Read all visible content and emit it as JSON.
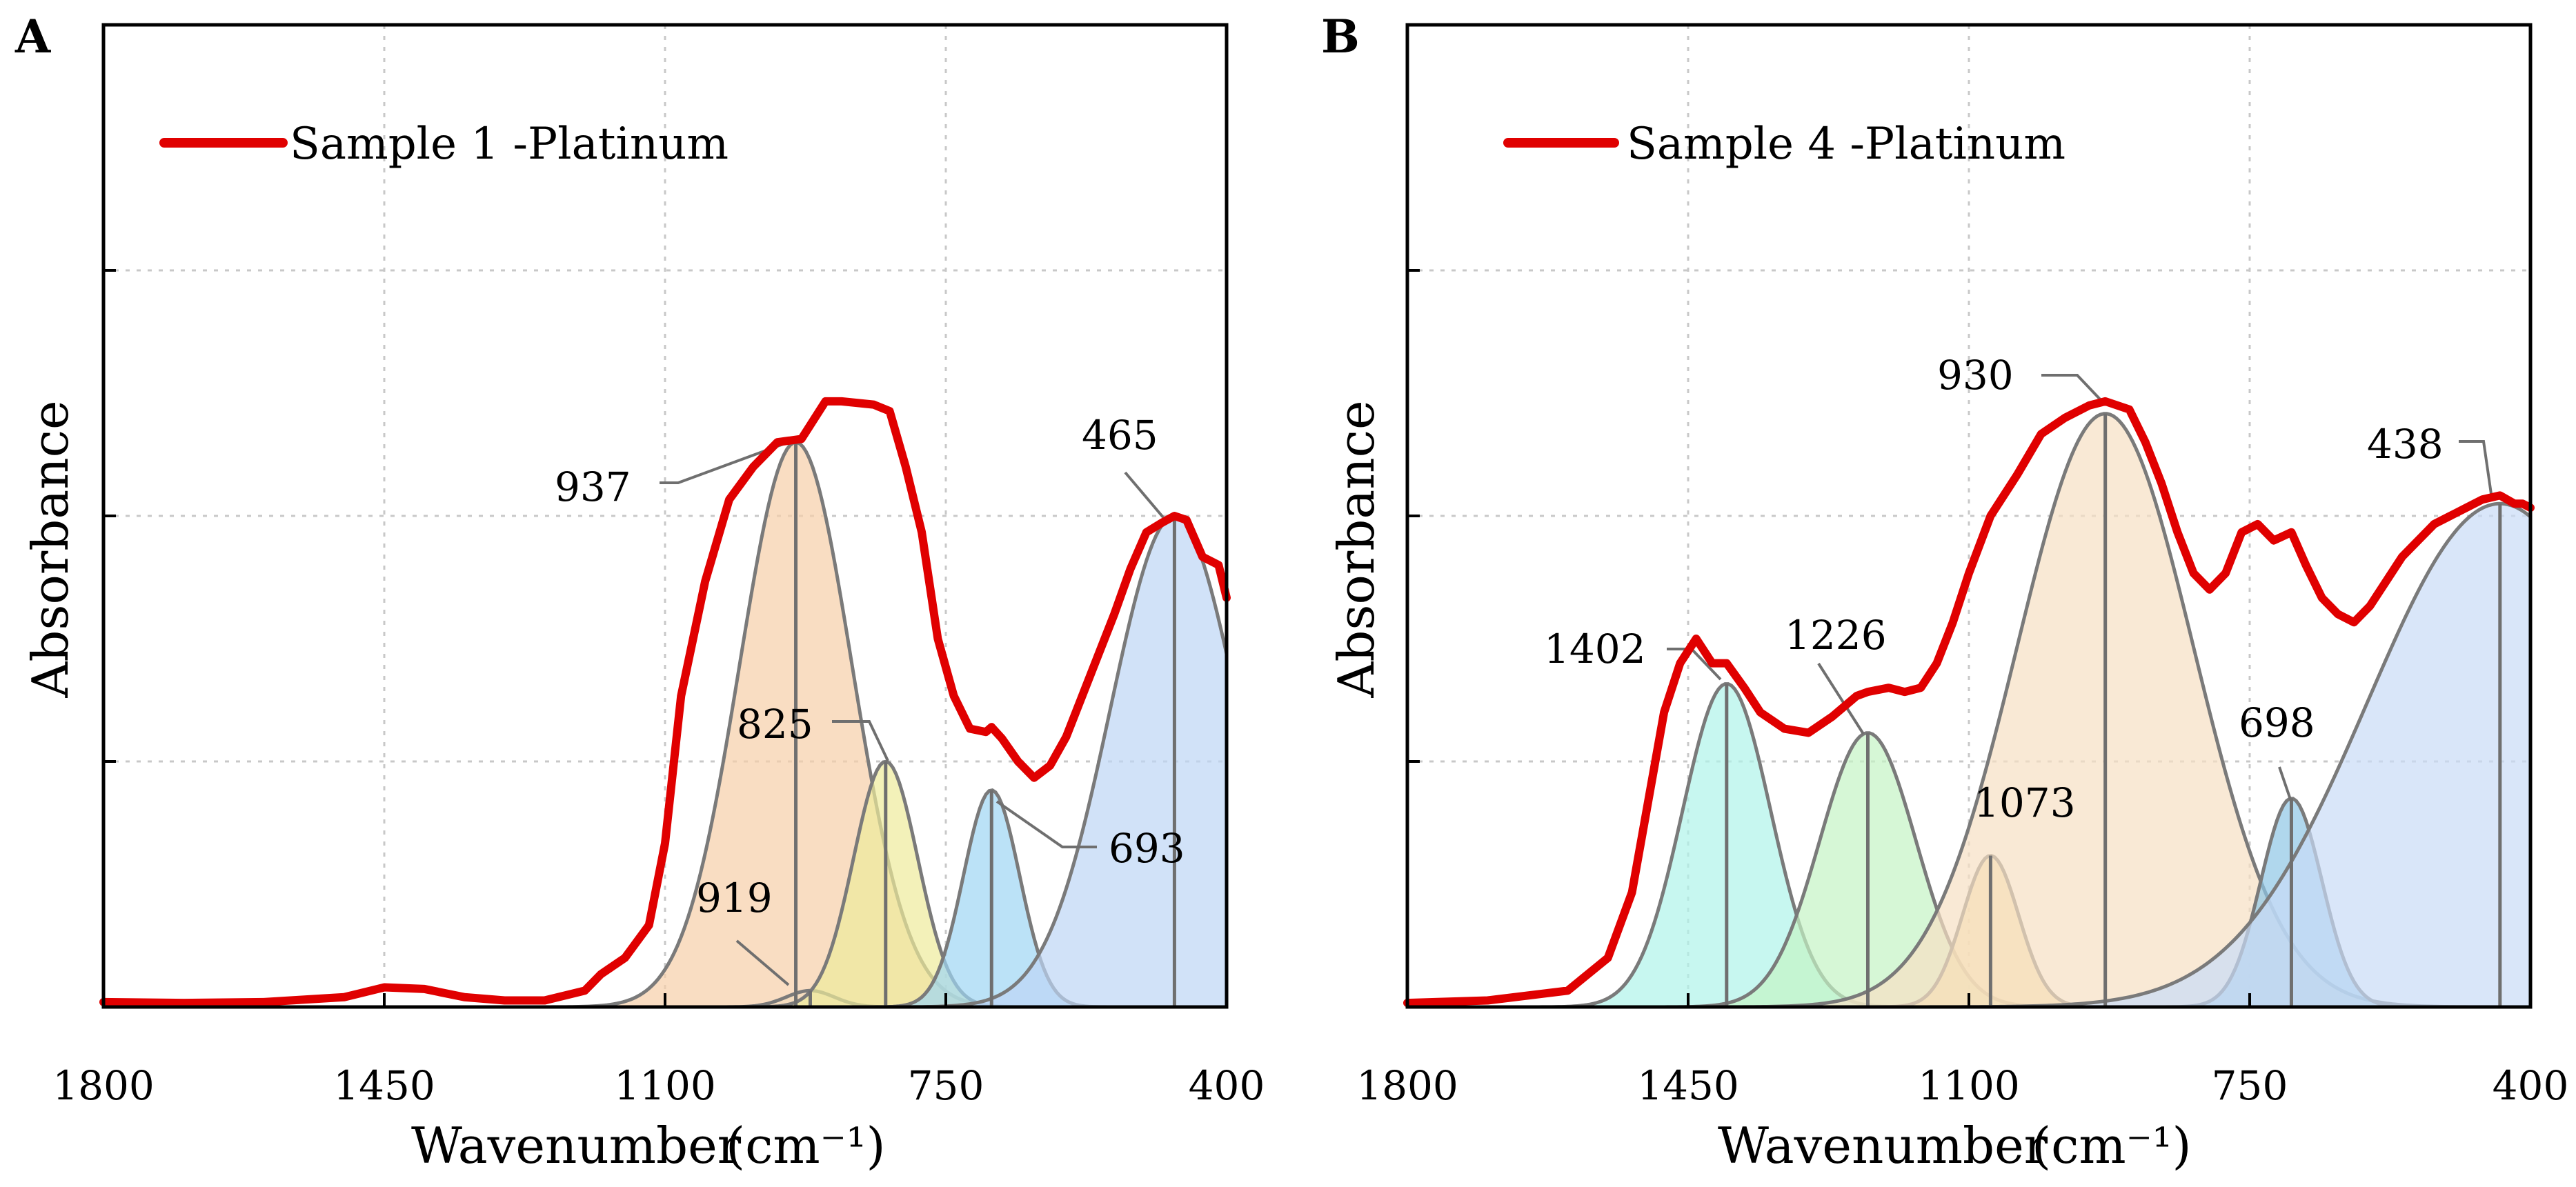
{
  "chart_data": [
    {
      "panel": "A",
      "type": "line",
      "title": "",
      "xlabel": "Wavenumber",
      "xlabel_unit": "(cm⁻¹)",
      "ylabel": "Absorbance",
      "xlim": [
        1800,
        400
      ],
      "ylim": [
        0,
        1.2
      ],
      "x_ticks": [
        "1800",
        "1450",
        "1100",
        "750",
        "400"
      ],
      "x_tick_values": [
        1800,
        1450,
        1100,
        750,
        400
      ],
      "y_tick_values": [
        0,
        0.3,
        0.6,
        0.9,
        1.2
      ],
      "y_tick_labels_visible": false,
      "grid": true,
      "legend": {
        "position": "top-left",
        "entries": [
          {
            "label": "Sample 1 -Platinum",
            "color": "#e00000"
          }
        ]
      },
      "series": [
        {
          "name": "Sample 1 -Platinum",
          "color": "#e00000",
          "points": [
            [
              1800,
              0.006
            ],
            [
              1700,
              0.005
            ],
            [
              1600,
              0.006
            ],
            [
              1500,
              0.012
            ],
            [
              1450,
              0.024
            ],
            [
              1400,
              0.022
            ],
            [
              1350,
              0.012
            ],
            [
              1300,
              0.008
            ],
            [
              1250,
              0.008
            ],
            [
              1200,
              0.02
            ],
            [
              1180,
              0.04
            ],
            [
              1150,
              0.06
            ],
            [
              1120,
              0.1
            ],
            [
              1100,
              0.2
            ],
            [
              1080,
              0.38
            ],
            [
              1050,
              0.52
            ],
            [
              1020,
              0.62
            ],
            [
              990,
              0.66
            ],
            [
              960,
              0.69
            ],
            [
              930,
              0.694
            ],
            [
              900,
              0.74
            ],
            [
              880,
              0.74
            ],
            [
              860,
              0.738
            ],
            [
              840,
              0.736
            ],
            [
              820,
              0.728
            ],
            [
              800,
              0.66
            ],
            [
              780,
              0.58
            ],
            [
              760,
              0.45
            ],
            [
              740,
              0.38
            ],
            [
              720,
              0.34
            ],
            [
              700,
              0.336
            ],
            [
              693,
              0.342
            ],
            [
              680,
              0.328
            ],
            [
              660,
              0.3
            ],
            [
              640,
              0.28
            ],
            [
              620,
              0.295
            ],
            [
              600,
              0.33
            ],
            [
              580,
              0.38
            ],
            [
              560,
              0.43
            ],
            [
              540,
              0.48
            ],
            [
              520,
              0.535
            ],
            [
              500,
              0.58
            ],
            [
              480,
              0.592
            ],
            [
              465,
              0.6
            ],
            [
              450,
              0.595
            ],
            [
              430,
              0.55
            ],
            [
              410,
              0.54
            ],
            [
              400,
              0.5
            ]
          ]
        }
      ],
      "components": [
        {
          "center": 937,
          "amplitude": 0.69,
          "sigma": 70,
          "color": "#f6cfa8"
        },
        {
          "center": 919,
          "amplitude": 0.02,
          "sigma": 30,
          "color": "#f2dcbc"
        },
        {
          "center": 825,
          "amplitude": 0.3,
          "sigma": 40,
          "color": "#eeeb9b"
        },
        {
          "center": 693,
          "amplitude": 0.265,
          "sigma": 35,
          "color": "#9ed6f3"
        },
        {
          "center": 465,
          "amplitude": 0.6,
          "sigma": 80,
          "color": "#bdd5f5"
        }
      ],
      "annotations": [
        "937",
        "919",
        "825",
        "693",
        "465"
      ]
    },
    {
      "panel": "B",
      "type": "line",
      "title": "",
      "xlabel": "Wavenumber",
      "xlabel_unit": "(cm⁻¹)",
      "ylabel": "Absorbance",
      "xlim": [
        1800,
        400
      ],
      "ylim": [
        0,
        1.2
      ],
      "x_ticks": [
        "1800",
        "1450",
        "1100",
        "750",
        "400"
      ],
      "x_tick_values": [
        1800,
        1450,
        1100,
        750,
        400
      ],
      "y_tick_values": [
        0,
        0.3,
        0.6,
        0.9,
        1.2
      ],
      "y_tick_labels_visible": false,
      "grid": true,
      "legend": {
        "position": "top-left",
        "entries": [
          {
            "label": "Sample 4 -Platinum",
            "color": "#e00000"
          }
        ]
      },
      "series": [
        {
          "name": "Sample 4 -Platinum",
          "color": "#e00000",
          "points": [
            [
              1800,
              0.005
            ],
            [
              1700,
              0.008
            ],
            [
              1600,
              0.02
            ],
            [
              1550,
              0.06
            ],
            [
              1520,
              0.14
            ],
            [
              1500,
              0.25
            ],
            [
              1480,
              0.36
            ],
            [
              1460,
              0.42
            ],
            [
              1440,
              0.45
            ],
            [
              1420,
              0.42
            ],
            [
              1402,
              0.42
            ],
            [
              1380,
              0.39
            ],
            [
              1360,
              0.36
            ],
            [
              1330,
              0.34
            ],
            [
              1300,
              0.335
            ],
            [
              1270,
              0.355
            ],
            [
              1240,
              0.38
            ],
            [
              1226,
              0.385
            ],
            [
              1200,
              0.39
            ],
            [
              1180,
              0.385
            ],
            [
              1160,
              0.39
            ],
            [
              1140,
              0.42
            ],
            [
              1120,
              0.47
            ],
            [
              1100,
              0.53
            ],
            [
              1073,
              0.6
            ],
            [
              1040,
              0.65
            ],
            [
              1010,
              0.7
            ],
            [
              980,
              0.72
            ],
            [
              950,
              0.735
            ],
            [
              930,
              0.74
            ],
            [
              900,
              0.73
            ],
            [
              880,
              0.69
            ],
            [
              860,
              0.64
            ],
            [
              840,
              0.58
            ],
            [
              820,
              0.53
            ],
            [
              800,
              0.51
            ],
            [
              780,
              0.53
            ],
            [
              760,
              0.58
            ],
            [
              740,
              0.59
            ],
            [
              720,
              0.57
            ],
            [
              698,
              0.58
            ],
            [
              680,
              0.54
            ],
            [
              660,
              0.5
            ],
            [
              640,
              0.48
            ],
            [
              620,
              0.47
            ],
            [
              600,
              0.49
            ],
            [
              580,
              0.52
            ],
            [
              560,
              0.55
            ],
            [
              540,
              0.57
            ],
            [
              520,
              0.59
            ],
            [
              500,
              0.6
            ],
            [
              480,
              0.61
            ],
            [
              460,
              0.62
            ],
            [
              438,
              0.625
            ],
            [
              420,
              0.615
            ],
            [
              410,
              0.615
            ],
            [
              400,
              0.61
            ]
          ]
        }
      ],
      "components": [
        {
          "center": 1402,
          "amplitude": 0.395,
          "sigma": 55,
          "color": "#aff3ea"
        },
        {
          "center": 1226,
          "amplitude": 0.335,
          "sigma": 60,
          "color": "#c4f4c4"
        },
        {
          "center": 1073,
          "amplitude": 0.185,
          "sigma": 35,
          "color": "#f7dc9e"
        },
        {
          "center": 930,
          "amplitude": 0.725,
          "sigma": 110,
          "color": "#f6dfc3"
        },
        {
          "center": 698,
          "amplitude": 0.255,
          "sigma": 38,
          "color": "#8ec6e5"
        },
        {
          "center": 438,
          "amplitude": 0.615,
          "sigma": 165,
          "color": "#c9dcf6"
        }
      ],
      "annotations": [
        "1402",
        "1226",
        "1073",
        "930",
        "698",
        "438"
      ]
    }
  ]
}
